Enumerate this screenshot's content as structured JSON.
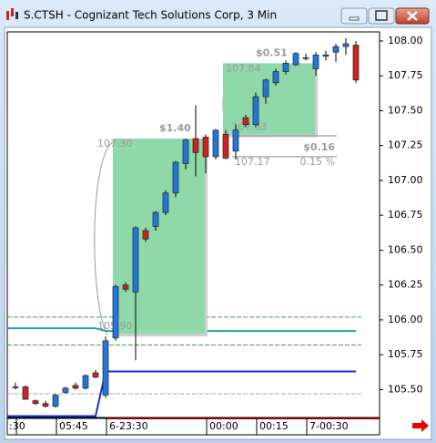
{
  "chart_data": {
    "type": "candlestick",
    "title": "S.CTSH - Cognizant Tech Solutions Corp, 3 Min",
    "categories": [
      ":30",
      null,
      null,
      null,
      "05:45",
      null,
      null,
      null,
      null,
      "6-23:30",
      null,
      null,
      null,
      null,
      null,
      null,
      null,
      null,
      null,
      "00:00",
      null,
      null,
      null,
      null,
      "00:15",
      null,
      null,
      null,
      null,
      "7-00:30",
      null,
      null,
      null,
      null,
      null
    ],
    "open": [
      105.52,
      105.52,
      105.42,
      105.4,
      105.38,
      105.48,
      105.53,
      105.51,
      105.62,
      105.46,
      105.87,
      106.25,
      106.2,
      106.64,
      106.67,
      106.77,
      106.91,
      107.12,
      107.3,
      107.31,
      107.17,
      107.33,
      107.21,
      107.45,
      107.4,
      107.6,
      107.7,
      107.78,
      107.83,
      107.88,
      107.8,
      107.89,
      107.92,
      107.96,
      107.97
    ],
    "high": [
      105.55,
      105.53,
      105.43,
      105.42,
      105.47,
      105.52,
      105.55,
      105.61,
      105.64,
      105.88,
      106.25,
      106.27,
      106.67,
      106.66,
      106.78,
      106.93,
      107.14,
      107.3,
      107.54,
      107.33,
      107.37,
      107.36,
      107.4,
      107.47,
      107.63,
      107.73,
      107.8,
      107.86,
      107.92,
      107.91,
      107.92,
      107.93,
      107.98,
      108.02,
      108.0
    ],
    "low": [
      105.5,
      105.43,
      105.39,
      105.37,
      105.37,
      105.47,
      105.5,
      105.5,
      105.58,
      105.44,
      105.85,
      106.2,
      105.71,
      106.56,
      106.64,
      106.75,
      106.88,
      107.08,
      107.03,
      107.05,
      107.15,
      107.15,
      107.15,
      107.38,
      107.38,
      107.55,
      107.68,
      107.76,
      107.82,
      107.86,
      107.75,
      107.86,
      107.85,
      107.9,
      107.7
    ],
    "close": [
      105.52,
      105.43,
      105.4,
      105.38,
      105.46,
      105.51,
      105.51,
      105.6,
      105.59,
      105.85,
      106.24,
      106.22,
      106.66,
      106.58,
      106.77,
      106.91,
      107.13,
      107.29,
      107.2,
      107.17,
      107.36,
      107.16,
      107.36,
      107.4,
      107.6,
      107.72,
      107.78,
      107.84,
      107.91,
      107.88,
      107.9,
      107.9,
      107.96,
      107.98,
      107.72
    ],
    "up_color": "#2277dd",
    "down_color": "#cc2222",
    "lines": [
      {
        "color": "#1aa3a3",
        "values": [
          105.94,
          105.94,
          105.94,
          105.94,
          105.94,
          105.94,
          105.94,
          105.94,
          105.94,
          105.92,
          105.92,
          105.92,
          105.92,
          105.92,
          105.92,
          105.92,
          105.92,
          105.92,
          105.92,
          105.92,
          105.92,
          105.92,
          105.92,
          105.92,
          105.92,
          105.92,
          105.92,
          105.92,
          105.92,
          105.92,
          105.92,
          105.92,
          105.92,
          105.92,
          105.92
        ]
      },
      {
        "color": "#1a2fd0",
        "values": [
          105.31,
          105.31,
          105.31,
          105.31,
          105.31,
          105.31,
          105.31,
          105.31,
          105.31,
          105.63,
          105.63,
          105.63,
          105.63,
          105.63,
          105.63,
          105.63,
          105.63,
          105.63,
          105.63,
          105.63,
          105.63,
          105.63,
          105.63,
          105.63,
          105.63,
          105.63,
          105.63,
          105.63,
          105.63,
          105.63,
          105.63,
          105.63,
          105.63,
          105.63,
          105.63
        ]
      }
    ],
    "levels": [
      {
        "value": 106.02,
        "color": "#33aa33"
      },
      {
        "value": 105.82,
        "color": "#33aa33"
      },
      {
        "value": 105.47,
        "color": "#aaaaaa"
      }
    ],
    "measures": [
      {
        "high": {
          "value": 107.3,
          "label": "107.30"
        },
        "low": {
          "value": 105.9,
          "label": "105.90"
        },
        "change": "$1.40"
      },
      {
        "high": {
          "value": 107.84,
          "label": "107.84"
        },
        "low": {
          "value": 107.33,
          "label": "107.33"
        },
        "change": "$0.51"
      }
    ],
    "pct_measure": {
      "from": 107.32,
      "to": {
        "value": 107.17,
        "label": "107.17"
      },
      "change": "$0.16",
      "percent": "0.15 %"
    },
    "ylim": [
      105.3,
      108.065
    ],
    "yticks": [
      {
        "value": 105.5,
        "label": "105.50"
      },
      {
        "value": 105.75,
        "label": "105.75"
      },
      {
        "value": 106,
        "label": "106.00"
      },
      {
        "value": 106.25,
        "label": "106.25"
      },
      {
        "value": 106.5,
        "label": "106.50"
      },
      {
        "value": 106.75,
        "label": "106.75"
      },
      {
        "value": 107,
        "label": "107.00"
      },
      {
        "value": 107.25,
        "label": "107.25"
      },
      {
        "value": 107.5,
        "label": "107.50"
      },
      {
        "value": 107.75,
        "label": "107.75"
      },
      {
        "value": 108,
        "label": "108.00"
      }
    ]
  }
}
